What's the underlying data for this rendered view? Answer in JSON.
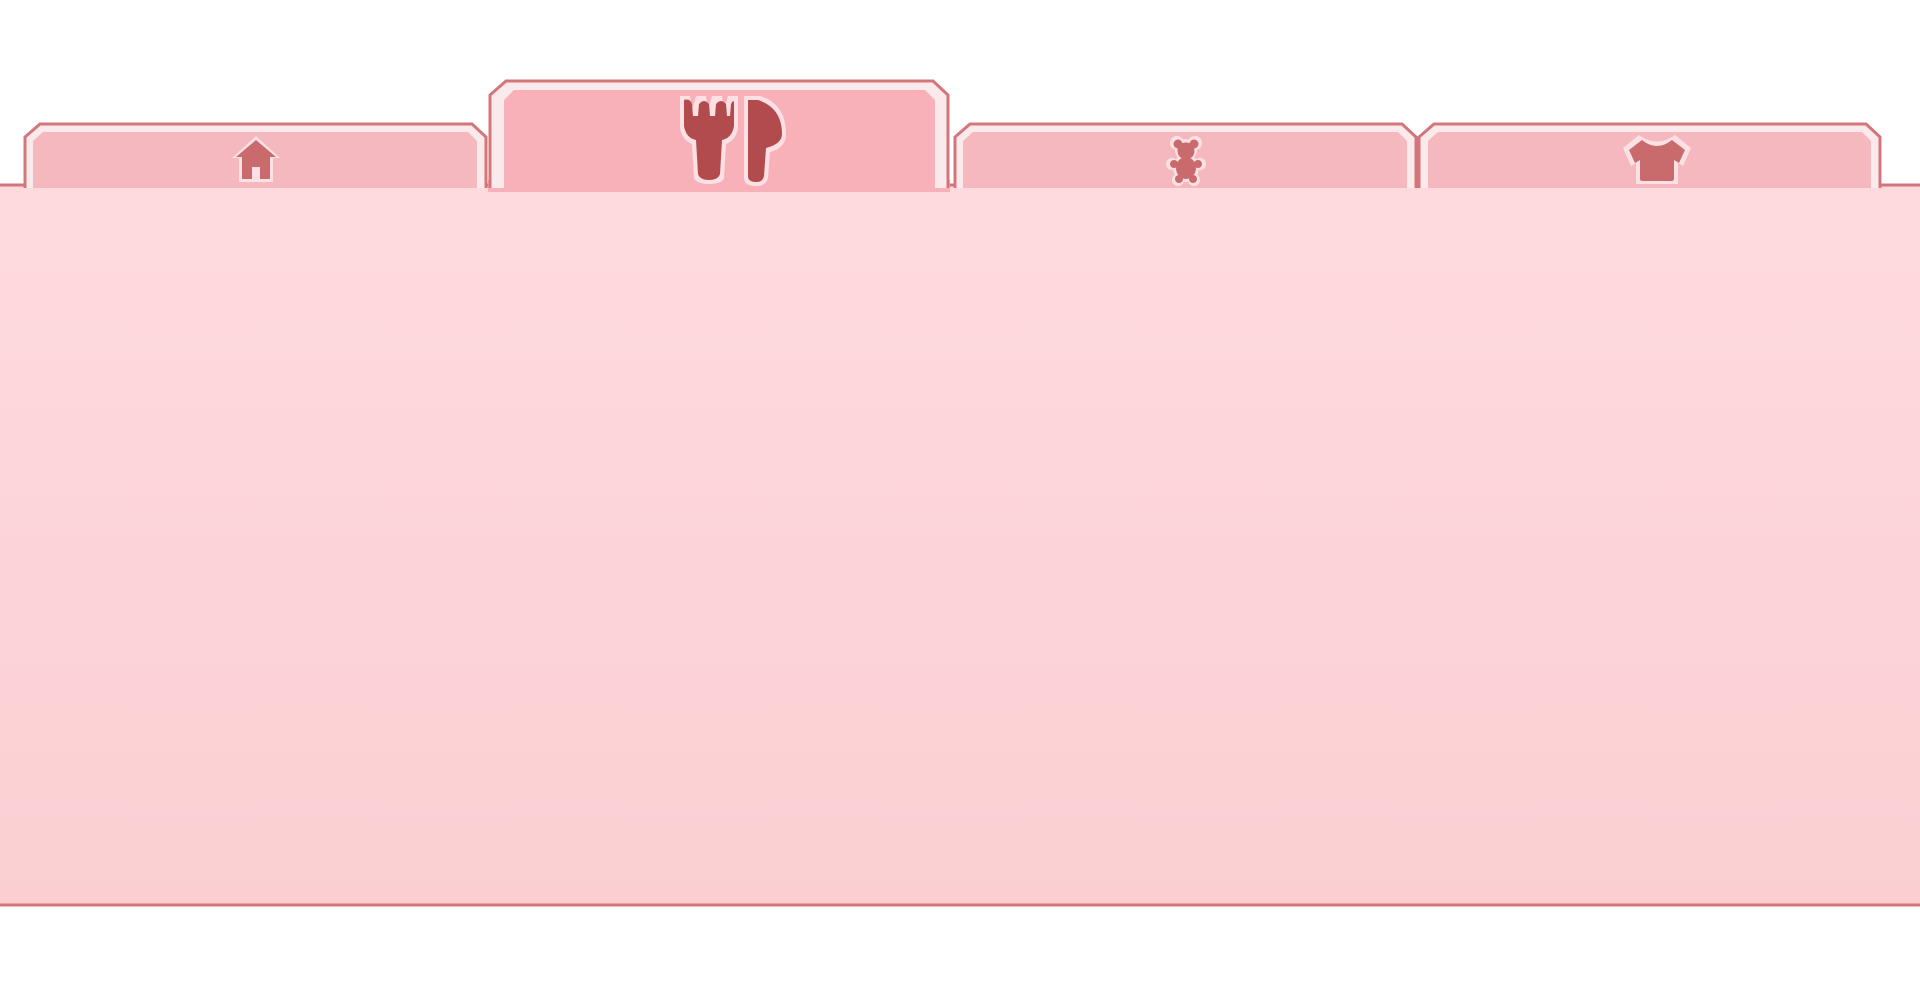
{
  "colors": {
    "background": "#ffffff",
    "outline": "#d4757a",
    "inner_highlight": "#fde6e8",
    "panel_top": "#fedadf",
    "panel_bottom": "#fbcfd2",
    "tab_inactive": "#f4b8be",
    "tab_active": "#f8b1b8",
    "icon_inactive": "#c96a6d",
    "icon_active": "#b24b4d",
    "icon_glow": "#fde0e3"
  },
  "tabs": [
    {
      "name": "home",
      "icon": "house-icon",
      "selected": false
    },
    {
      "name": "food",
      "icon": "fork-knife-icon",
      "selected": true
    },
    {
      "name": "toys",
      "icon": "teddy-bear-icon",
      "selected": false
    },
    {
      "name": "clothing",
      "icon": "shirt-icon",
      "selected": false
    }
  ]
}
